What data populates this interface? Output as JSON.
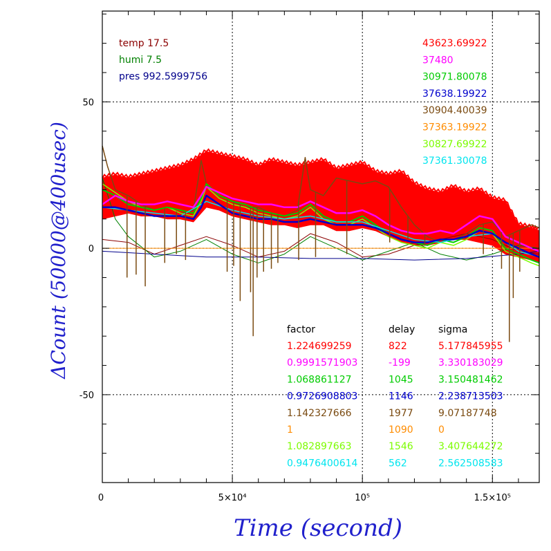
{
  "chart_data": {
    "type": "line",
    "title": "",
    "xlabel": "Time (second)",
    "ylabel": "ΔCount (50000@400usec)",
    "xlim": [
      0,
      168000
    ],
    "ylim": [
      -80,
      81
    ],
    "grid": true,
    "x_ticks": [
      {
        "value": 0,
        "label": "0"
      },
      {
        "value": 50000,
        "label": "5×10⁴"
      },
      {
        "value": 100000,
        "label": "10⁵"
      },
      {
        "value": 150000,
        "label": "1.5×10⁵"
      }
    ],
    "y_ticks": [
      {
        "value": 50,
        "label": "50"
      },
      {
        "value": 0,
        "label": "0"
      },
      {
        "value": -50,
        "label": "-50"
      }
    ],
    "env": [
      {
        "text": "temp 17.5",
        "color": "#8b0000"
      },
      {
        "text": "humi 7.5",
        "color": "#008000"
      },
      {
        "text": "pres 992.5999756",
        "color": "#00008b"
      }
    ],
    "series_values": [
      {
        "text": "43623.69922",
        "color": "#ff0000"
      },
      {
        "text": "37480",
        "color": "#ff00ff"
      },
      {
        "text": "30971.80078",
        "color": "#00cc00"
      },
      {
        "text": "37638.19922",
        "color": "#0000cc"
      },
      {
        "text": "30904.40039",
        "color": "#7a4a10"
      },
      {
        "text": "37363.19922",
        "color": "#ff8c00"
      },
      {
        "text": "30827.69922",
        "color": "#7cfc00"
      },
      {
        "text": "37361.30078",
        "color": "#00e5ee"
      }
    ],
    "table_headers": [
      "factor",
      "delay",
      "sigma"
    ],
    "table_rows": [
      {
        "factor": "1.224699259",
        "delay": "822",
        "sigma": "5.177845955",
        "color": "#ff0000"
      },
      {
        "factor": "0.9991571903",
        "delay": "-199",
        "sigma": "3.330183029",
        "color": "#ff00ff"
      },
      {
        "factor": "1.068861127",
        "delay": "1045",
        "sigma": "3.150481462",
        "color": "#00cc00"
      },
      {
        "factor": "0.9726908803",
        "delay": "1146",
        "sigma": "2.238713503",
        "color": "#0000cc"
      },
      {
        "factor": "1.142327666",
        "delay": "1977",
        "sigma": "9.07187748",
        "color": "#7a4a10"
      },
      {
        "factor": "1",
        "delay": "1090",
        "sigma": "0",
        "color": "#ff8c00"
      },
      {
        "factor": "1.082897663",
        "delay": "1546",
        "sigma": "3.407644272",
        "color": "#7cfc00"
      },
      {
        "factor": "0.9476400614",
        "delay": "562",
        "sigma": "2.562508583",
        "color": "#00e5ee"
      }
    ],
    "band": {
      "color": "#ff0000",
      "x": [
        0,
        5000,
        10000,
        15000,
        20000,
        25000,
        30000,
        35000,
        40000,
        45000,
        50000,
        55000,
        60000,
        65000,
        70000,
        75000,
        80000,
        85000,
        90000,
        95000,
        100000,
        105000,
        110000,
        115000,
        120000,
        125000,
        130000,
        135000,
        140000,
        145000,
        150000,
        155000,
        160000,
        165000,
        168000
      ],
      "upper": [
        24,
        25,
        24,
        25,
        26,
        27,
        28,
        30,
        33,
        32,
        31,
        30,
        28,
        30,
        29,
        28,
        29,
        30,
        27,
        28,
        29,
        26,
        25,
        26,
        22,
        20,
        19,
        21,
        19,
        20,
        17,
        16,
        8,
        7,
        6
      ],
      "lower": [
        10,
        11,
        12,
        11,
        11,
        10,
        10,
        9,
        14,
        13,
        11,
        10,
        9,
        8,
        8,
        7,
        8,
        8,
        6,
        6,
        7,
        6,
        4,
        2,
        1,
        1,
        2,
        3,
        3,
        2,
        1,
        -2,
        -3,
        -4,
        -5
      ]
    },
    "series": [
      {
        "name": "magenta",
        "color": "#ff00ff",
        "width": 2.5,
        "x": [
          0,
          5000,
          10000,
          15000,
          20000,
          25000,
          30000,
          35000,
          38000,
          40000,
          45000,
          50000,
          55000,
          60000,
          65000,
          70000,
          75000,
          80000,
          85000,
          90000,
          95000,
          100000,
          105000,
          110000,
          115000,
          120000,
          125000,
          130000,
          135000,
          140000,
          145000,
          150000,
          155000,
          160000,
          165000,
          168000
        ],
        "y": [
          15,
          18,
          16,
          15,
          15,
          16,
          15,
          14,
          18,
          21,
          19,
          17,
          16,
          15,
          15,
          14,
          14,
          16,
          14,
          12,
          12,
          13,
          11,
          8,
          6,
          5,
          5,
          6,
          5,
          8,
          11,
          10,
          4,
          2,
          0,
          -1
        ]
      },
      {
        "name": "green",
        "color": "#00cc00",
        "width": 2,
        "x": [
          0,
          5000,
          10000,
          15000,
          20000,
          25000,
          30000,
          35000,
          38000,
          40000,
          45000,
          50000,
          55000,
          60000,
          65000,
          70000,
          75000,
          80000,
          85000,
          90000,
          95000,
          100000,
          105000,
          110000,
          115000,
          120000,
          125000,
          130000,
          135000,
          140000,
          145000,
          150000,
          155000,
          160000,
          165000,
          168000
        ],
        "y": [
          20,
          18,
          15,
          14,
          13,
          14,
          13,
          12,
          17,
          22,
          18,
          16,
          15,
          13,
          12,
          11,
          12,
          15,
          11,
          9,
          9,
          11,
          8,
          5,
          3,
          2,
          1,
          3,
          2,
          4,
          7,
          6,
          0,
          -2,
          -4,
          -5
        ]
      },
      {
        "name": "lime",
        "color": "#7cfc00",
        "width": 1.5,
        "x": [
          0,
          5000,
          10000,
          15000,
          20000,
          25000,
          30000,
          35000,
          38000,
          40000,
          45000,
          50000,
          55000,
          60000,
          65000,
          70000,
          75000,
          80000,
          85000,
          90000,
          95000,
          100000,
          105000,
          110000,
          115000,
          120000,
          125000,
          130000,
          135000,
          140000,
          145000,
          150000,
          155000,
          160000,
          165000,
          168000
        ],
        "y": [
          22,
          19,
          16,
          14,
          13,
          14,
          12,
          11,
          16,
          21,
          17,
          15,
          14,
          12,
          11,
          10,
          11,
          14,
          10,
          8,
          8,
          10,
          7,
          4,
          2,
          1,
          0,
          2,
          1,
          3,
          6,
          5,
          -1,
          -3,
          -5,
          -6
        ]
      },
      {
        "name": "cyan",
        "color": "#00e5ee",
        "width": 1.5,
        "x": [
          0,
          10000,
          20000,
          30000,
          40000,
          50000,
          60000,
          70000,
          80000,
          90000,
          100000,
          110000,
          120000,
          130000,
          140000,
          150000,
          160000,
          168000
        ],
        "y": [
          14,
          13,
          12,
          11,
          16,
          13,
          11,
          10,
          11,
          9,
          9,
          6,
          3,
          2,
          4,
          5,
          -1,
          -3
        ]
      },
      {
        "name": "blue",
        "color": "#0000cc",
        "width": 2.5,
        "x": [
          0,
          5000,
          10000,
          15000,
          20000,
          25000,
          30000,
          35000,
          38000,
          40000,
          45000,
          50000,
          55000,
          60000,
          65000,
          70000,
          75000,
          80000,
          85000,
          90000,
          95000,
          100000,
          105000,
          110000,
          115000,
          120000,
          125000,
          130000,
          135000,
          140000,
          145000,
          150000,
          155000,
          160000,
          165000,
          168000
        ],
        "y": [
          14,
          14,
          13,
          12,
          11,
          11,
          11,
          10,
          14,
          18,
          15,
          12,
          11,
          10,
          10,
          9,
          9,
          10,
          9,
          8,
          8,
          8,
          7,
          5,
          3,
          2,
          2,
          3,
          3,
          4,
          6,
          5,
          2,
          0,
          -2,
          -3
        ]
      },
      {
        "name": "brown",
        "color": "#7a4a10",
        "width": 1.5,
        "x": [
          0,
          2000,
          5000,
          10000,
          15000,
          20000,
          25000,
          30000,
          35000,
          38000,
          40000,
          45000,
          50000,
          55000,
          60000,
          65000,
          70000,
          75000,
          78000,
          80000,
          85000,
          90000,
          95000,
          100000,
          105000,
          110000,
          115000,
          120000,
          125000,
          130000,
          135000,
          140000,
          145000,
          150000,
          155000,
          160000,
          165000,
          168000
        ],
        "y": [
          35,
          28,
          20,
          18,
          15,
          13,
          14,
          12,
          13,
          30,
          22,
          18,
          16,
          14,
          14,
          12,
          11,
          13,
          31,
          20,
          18,
          24,
          23,
          22,
          23,
          21,
          14,
          8,
          4,
          2,
          3,
          5,
          8,
          9,
          4,
          6,
          8,
          7
        ]
      },
      {
        "name": "orange",
        "color": "#ff8c00",
        "width": 1,
        "x": [
          0,
          168000
        ],
        "y": [
          0,
          0
        ]
      },
      {
        "name": "temp",
        "color": "#8b0000",
        "width": 1,
        "x": [
          0,
          10000,
          20000,
          30000,
          40000,
          50000,
          60000,
          70000,
          80000,
          90000,
          100000,
          110000,
          120000,
          130000,
          140000,
          150000,
          160000,
          168000
        ],
        "y": [
          3,
          2,
          -2,
          1,
          4,
          1,
          -3,
          -1,
          5,
          2,
          -3,
          -2,
          1,
          3,
          5,
          3,
          -1,
          -2
        ]
      },
      {
        "name": "humi",
        "color": "#008000",
        "width": 1,
        "x": [
          0,
          5000,
          10000,
          20000,
          30000,
          40000,
          50000,
          60000,
          70000,
          80000,
          90000,
          100000,
          110000,
          120000,
          130000,
          140000,
          150000,
          160000,
          168000
        ],
        "y": [
          24,
          10,
          4,
          -3,
          -1,
          3,
          -2,
          -5,
          -2,
          4,
          0,
          -4,
          -1,
          2,
          -2,
          -4,
          -2,
          1,
          0
        ]
      },
      {
        "name": "pres",
        "color": "#00008b",
        "width": 1,
        "x": [
          0,
          20000,
          40000,
          60000,
          80000,
          100000,
          120000,
          140000,
          160000,
          168000
        ],
        "y": [
          -1,
          -2,
          -3,
          -3,
          -3.5,
          -3.5,
          -4,
          -3.5,
          -2,
          -1
        ]
      }
    ],
    "spikes": {
      "color": "#7a4a10",
      "items": [
        {
          "x": 9500,
          "y": -10
        },
        {
          "x": 13000,
          "y": -9
        },
        {
          "x": 16500,
          "y": -13
        },
        {
          "x": 24000,
          "y": -5
        },
        {
          "x": 28500,
          "y": -2
        },
        {
          "x": 32000,
          "y": -4
        },
        {
          "x": 48000,
          "y": -8
        },
        {
          "x": 50500,
          "y": -6
        },
        {
          "x": 53000,
          "y": -18
        },
        {
          "x": 57000,
          "y": -15
        },
        {
          "x": 58000,
          "y": -30
        },
        {
          "x": 59500,
          "y": -10
        },
        {
          "x": 62000,
          "y": -8
        },
        {
          "x": 65000,
          "y": -7
        },
        {
          "x": 67500,
          "y": -5
        },
        {
          "x": 75500,
          "y": -4
        },
        {
          "x": 82000,
          "y": -3
        },
        {
          "x": 94000,
          "y": -2
        },
        {
          "x": 110500,
          "y": 2
        },
        {
          "x": 117500,
          "y": 3
        },
        {
          "x": 124000,
          "y": 1
        },
        {
          "x": 146500,
          "y": -2
        },
        {
          "x": 153500,
          "y": -7
        },
        {
          "x": 156500,
          "y": -32
        },
        {
          "x": 158000,
          "y": -17
        },
        {
          "x": 160500,
          "y": -8
        }
      ]
    }
  }
}
